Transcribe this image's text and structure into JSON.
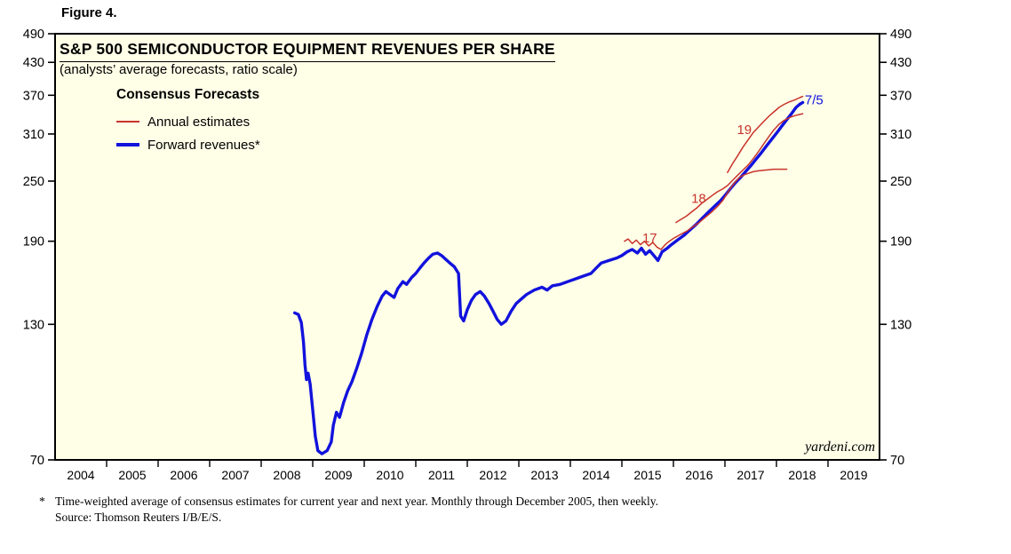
{
  "figure_label": "Figure 4.",
  "watermark": "yardeni.com",
  "footnote": {
    "marker": "*",
    "text": "Time-weighted average of consensus estimates for current year and next year. Monthly through December 2005, then weekly.",
    "source": "Source: Thomson Reuters I/B/E/S."
  },
  "colors": {
    "forward": "#1212dd",
    "annual": "#c9332b",
    "plot_bg": "#ffffe8",
    "frame": "#000000",
    "text": "#000000"
  },
  "chart_data": {
    "type": "line",
    "title": "S&P 500 SEMICONDUCTOR EQUIPMENT REVENUES PER SHARE",
    "subtitle": "(analysts’ average forecasts, ratio scale)",
    "scale": "log",
    "legend": {
      "title": "Consensus Forecasts",
      "position": "top-left inside plot",
      "items": [
        {
          "label": "Annual estimates",
          "series": "annual"
        },
        {
          "label": "Forward revenues*",
          "series": "forward"
        }
      ]
    },
    "x_axis": {
      "min": 2004,
      "max": 2020,
      "year_labels": [
        2004,
        2005,
        2006,
        2007,
        2008,
        2009,
        2010,
        2011,
        2012,
        2013,
        2014,
        2015,
        2016,
        2017,
        2018,
        2019
      ]
    },
    "y_axis": {
      "min": 70,
      "max": 490,
      "ticks": [
        490,
        430,
        370,
        310,
        250,
        190,
        130,
        70
      ],
      "sides": "both"
    },
    "series": [
      {
        "id": "forward-revenues",
        "name": "Forward revenues*",
        "color_key": "forward",
        "width": 3.4,
        "points": [
          [
            2008.65,
            137
          ],
          [
            2008.72,
            136
          ],
          [
            2008.78,
            131
          ],
          [
            2008.82,
            120
          ],
          [
            2008.85,
            108
          ],
          [
            2008.88,
            101
          ],
          [
            2008.91,
            104
          ],
          [
            2008.95,
            99
          ],
          [
            2009.0,
            88
          ],
          [
            2009.05,
            78
          ],
          [
            2009.1,
            73
          ],
          [
            2009.18,
            72
          ],
          [
            2009.28,
            73
          ],
          [
            2009.36,
            76
          ],
          [
            2009.4,
            82
          ],
          [
            2009.46,
            87
          ],
          [
            2009.52,
            85
          ],
          [
            2009.6,
            91
          ],
          [
            2009.68,
            96
          ],
          [
            2009.76,
            100
          ],
          [
            2009.85,
            106
          ],
          [
            2009.95,
            114
          ],
          [
            2010.05,
            124
          ],
          [
            2010.15,
            133
          ],
          [
            2010.25,
            141
          ],
          [
            2010.35,
            148
          ],
          [
            2010.42,
            151
          ],
          [
            2010.5,
            149
          ],
          [
            2010.58,
            147
          ],
          [
            2010.65,
            153
          ],
          [
            2010.75,
            158
          ],
          [
            2010.82,
            156
          ],
          [
            2010.92,
            161
          ],
          [
            2011.0,
            164
          ],
          [
            2011.08,
            168
          ],
          [
            2011.16,
            172
          ],
          [
            2011.25,
            176
          ],
          [
            2011.33,
            179
          ],
          [
            2011.42,
            180
          ],
          [
            2011.5,
            178
          ],
          [
            2011.58,
            175
          ],
          [
            2011.66,
            172
          ],
          [
            2011.75,
            169
          ],
          [
            2011.83,
            164
          ],
          [
            2011.87,
            135
          ],
          [
            2011.93,
            132
          ],
          [
            2012.0,
            139
          ],
          [
            2012.08,
            145
          ],
          [
            2012.16,
            149
          ],
          [
            2012.25,
            151
          ],
          [
            2012.33,
            148
          ],
          [
            2012.42,
            143
          ],
          [
            2012.5,
            138
          ],
          [
            2012.58,
            133
          ],
          [
            2012.66,
            130
          ],
          [
            2012.75,
            132
          ],
          [
            2012.85,
            138
          ],
          [
            2012.95,
            143
          ],
          [
            2013.05,
            146
          ],
          [
            2013.15,
            149
          ],
          [
            2013.3,
            152
          ],
          [
            2013.45,
            154
          ],
          [
            2013.55,
            152
          ],
          [
            2013.65,
            155
          ],
          [
            2013.8,
            156
          ],
          [
            2013.95,
            158
          ],
          [
            2014.1,
            160
          ],
          [
            2014.25,
            162
          ],
          [
            2014.4,
            164
          ],
          [
            2014.5,
            168
          ],
          [
            2014.6,
            172
          ],
          [
            2014.75,
            174
          ],
          [
            2014.9,
            176
          ],
          [
            2015.0,
            178
          ],
          [
            2015.1,
            181
          ],
          [
            2015.2,
            183
          ],
          [
            2015.3,
            180
          ],
          [
            2015.38,
            184
          ],
          [
            2015.46,
            179
          ],
          [
            2015.54,
            182
          ],
          [
            2015.62,
            178
          ],
          [
            2015.7,
            174
          ],
          [
            2015.78,
            181
          ],
          [
            2015.88,
            184
          ],
          [
            2015.96,
            187
          ],
          [
            2016.08,
            191
          ],
          [
            2016.2,
            195
          ],
          [
            2016.32,
            200
          ],
          [
            2016.44,
            205
          ],
          [
            2016.56,
            211
          ],
          [
            2016.68,
            217
          ],
          [
            2016.8,
            223
          ],
          [
            2016.92,
            229
          ],
          [
            2017.0,
            234
          ],
          [
            2017.1,
            241
          ],
          [
            2017.2,
            248
          ],
          [
            2017.3,
            254
          ],
          [
            2017.4,
            261
          ],
          [
            2017.5,
            268
          ],
          [
            2017.6,
            276
          ],
          [
            2017.7,
            284
          ],
          [
            2017.8,
            293
          ],
          [
            2017.9,
            302
          ],
          [
            2018.0,
            311
          ],
          [
            2018.1,
            321
          ],
          [
            2018.2,
            331
          ],
          [
            2018.3,
            341
          ],
          [
            2018.38,
            350
          ],
          [
            2018.45,
            355
          ],
          [
            2018.51,
            358
          ]
        ]
      },
      {
        "id": "annual-estimate-2017",
        "name": "Annual estimates — 2017",
        "color_key": "annual",
        "width": 1.5,
        "points": [
          [
            2015.05,
            190
          ],
          [
            2015.12,
            192
          ],
          [
            2015.2,
            188
          ],
          [
            2015.28,
            191
          ],
          [
            2015.36,
            187
          ],
          [
            2015.44,
            190
          ],
          [
            2015.52,
            186
          ],
          [
            2015.6,
            189
          ],
          [
            2015.68,
            185
          ],
          [
            2015.76,
            183
          ],
          [
            2015.84,
            187
          ],
          [
            2015.92,
            190
          ],
          [
            2016.02,
            193
          ],
          [
            2016.14,
            196
          ],
          [
            2016.26,
            199
          ],
          [
            2016.38,
            203
          ],
          [
            2016.5,
            207
          ],
          [
            2016.62,
            212
          ],
          [
            2016.74,
            217
          ],
          [
            2016.86,
            223
          ],
          [
            2016.96,
            229
          ],
          [
            2017.04,
            236
          ],
          [
            2017.12,
            243
          ],
          [
            2017.2,
            249
          ],
          [
            2017.28,
            254
          ],
          [
            2017.36,
            257
          ],
          [
            2017.45,
            259
          ],
          [
            2017.55,
            261
          ],
          [
            2017.65,
            262
          ],
          [
            2017.8,
            263
          ],
          [
            2017.95,
            264
          ],
          [
            2018.1,
            264
          ],
          [
            2018.2,
            264
          ]
        ]
      },
      {
        "id": "annual-estimate-2018",
        "name": "Annual estimates — 2018",
        "color_key": "annual",
        "width": 1.5,
        "points": [
          [
            2016.05,
            207
          ],
          [
            2016.15,
            210
          ],
          [
            2016.25,
            213
          ],
          [
            2016.35,
            217
          ],
          [
            2016.45,
            221
          ],
          [
            2016.55,
            226
          ],
          [
            2016.65,
            230
          ],
          [
            2016.75,
            234
          ],
          [
            2016.85,
            238
          ],
          [
            2016.95,
            241
          ],
          [
            2017.05,
            245
          ],
          [
            2017.15,
            251
          ],
          [
            2017.25,
            257
          ],
          [
            2017.35,
            263
          ],
          [
            2017.45,
            269
          ],
          [
            2017.55,
            277
          ],
          [
            2017.65,
            286
          ],
          [
            2017.75,
            296
          ],
          [
            2017.85,
            306
          ],
          [
            2017.95,
            316
          ],
          [
            2018.05,
            324
          ],
          [
            2018.15,
            330
          ],
          [
            2018.25,
            334
          ],
          [
            2018.35,
            337
          ],
          [
            2018.45,
            339
          ],
          [
            2018.51,
            340
          ]
        ]
      },
      {
        "id": "annual-estimate-2019",
        "name": "Annual estimates — 2019",
        "color_key": "annual",
        "width": 1.5,
        "points": [
          [
            2017.05,
            260
          ],
          [
            2017.15,
            271
          ],
          [
            2017.25,
            281
          ],
          [
            2017.35,
            292
          ],
          [
            2017.45,
            302
          ],
          [
            2017.55,
            312
          ],
          [
            2017.65,
            320
          ],
          [
            2017.75,
            328
          ],
          [
            2017.85,
            336
          ],
          [
            2017.95,
            343
          ],
          [
            2018.05,
            350
          ],
          [
            2018.15,
            355
          ],
          [
            2018.25,
            359
          ],
          [
            2018.35,
            362
          ],
          [
            2018.45,
            366
          ],
          [
            2018.51,
            368
          ]
        ]
      }
    ],
    "annotations": [
      {
        "text": "17",
        "t": 2015.54,
        "v": 193,
        "anchor": "middle",
        "color_key": "annual"
      },
      {
        "text": "18",
        "t": 2016.49,
        "v": 231,
        "anchor": "middle",
        "color_key": "annual"
      },
      {
        "text": "19",
        "t": 2017.52,
        "v": 316,
        "anchor": "end",
        "color_key": "annual"
      },
      {
        "text": "7/5",
        "t": 2018.55,
        "v": 362,
        "anchor": "start",
        "color_key": "forward"
      }
    ]
  }
}
